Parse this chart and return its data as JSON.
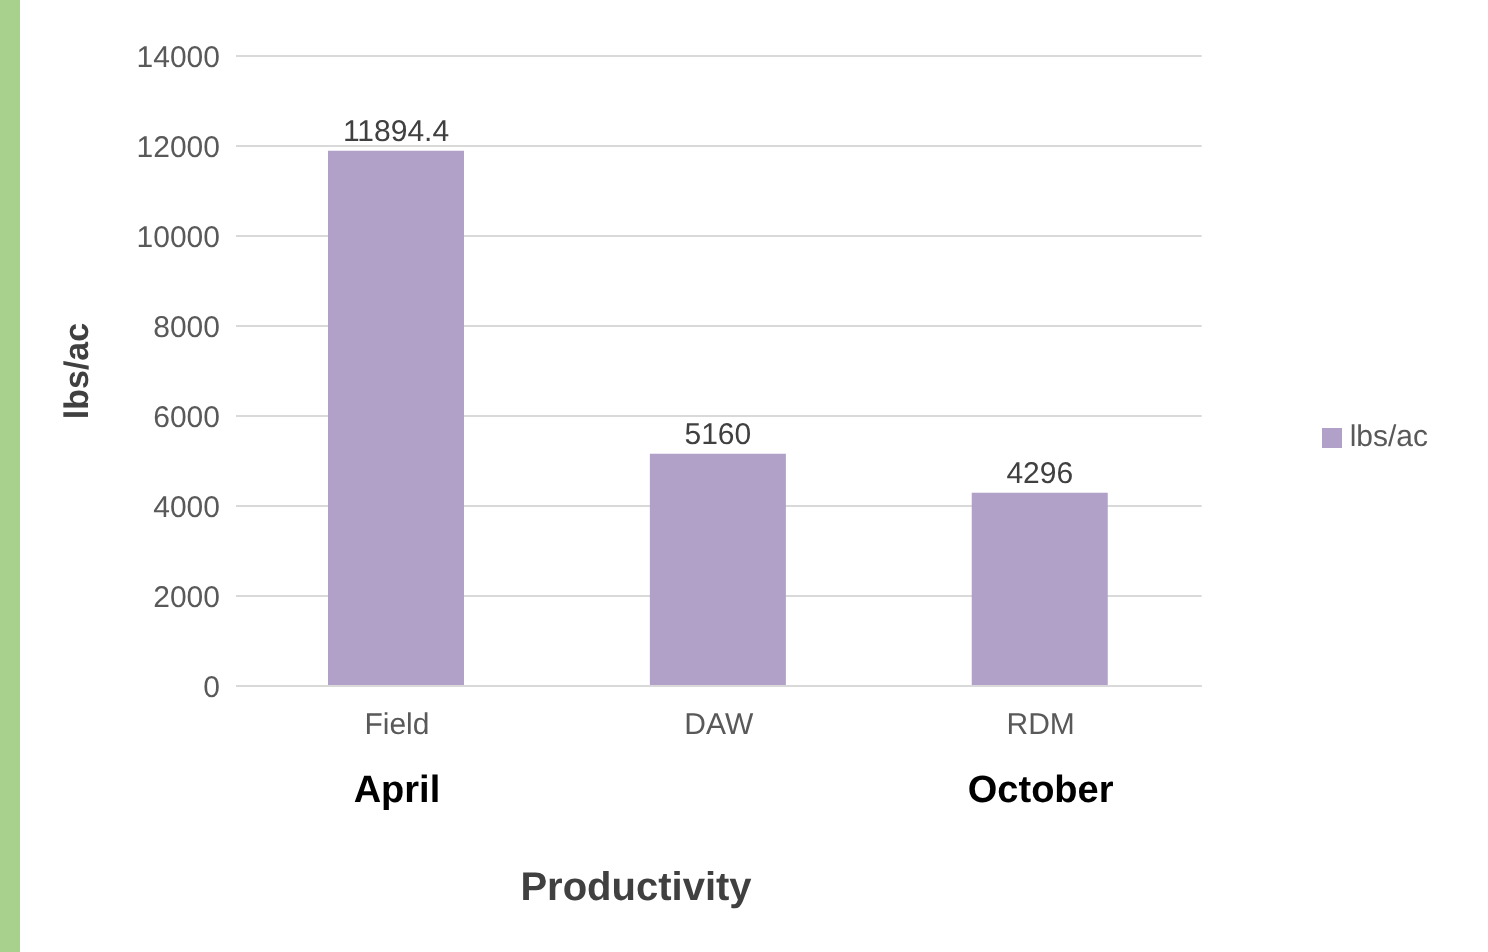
{
  "chart_data": {
    "type": "bar",
    "categories": [
      "Field",
      "DAW",
      "RDM"
    ],
    "series": [
      {
        "name": "lbs/ac",
        "color": "#b1a0c7",
        "values": [
          11894.4,
          5160,
          4296
        ]
      }
    ],
    "ylim": [
      0,
      14000
    ],
    "yticks": [
      0,
      2000,
      4000,
      6000,
      8000,
      10000,
      12000,
      14000
    ],
    "ylabel": "lbs/ac",
    "xlabel": "Productivity",
    "grid": "y",
    "legend": "right",
    "data_labels": true,
    "annotations": [
      "April",
      "October"
    ]
  }
}
